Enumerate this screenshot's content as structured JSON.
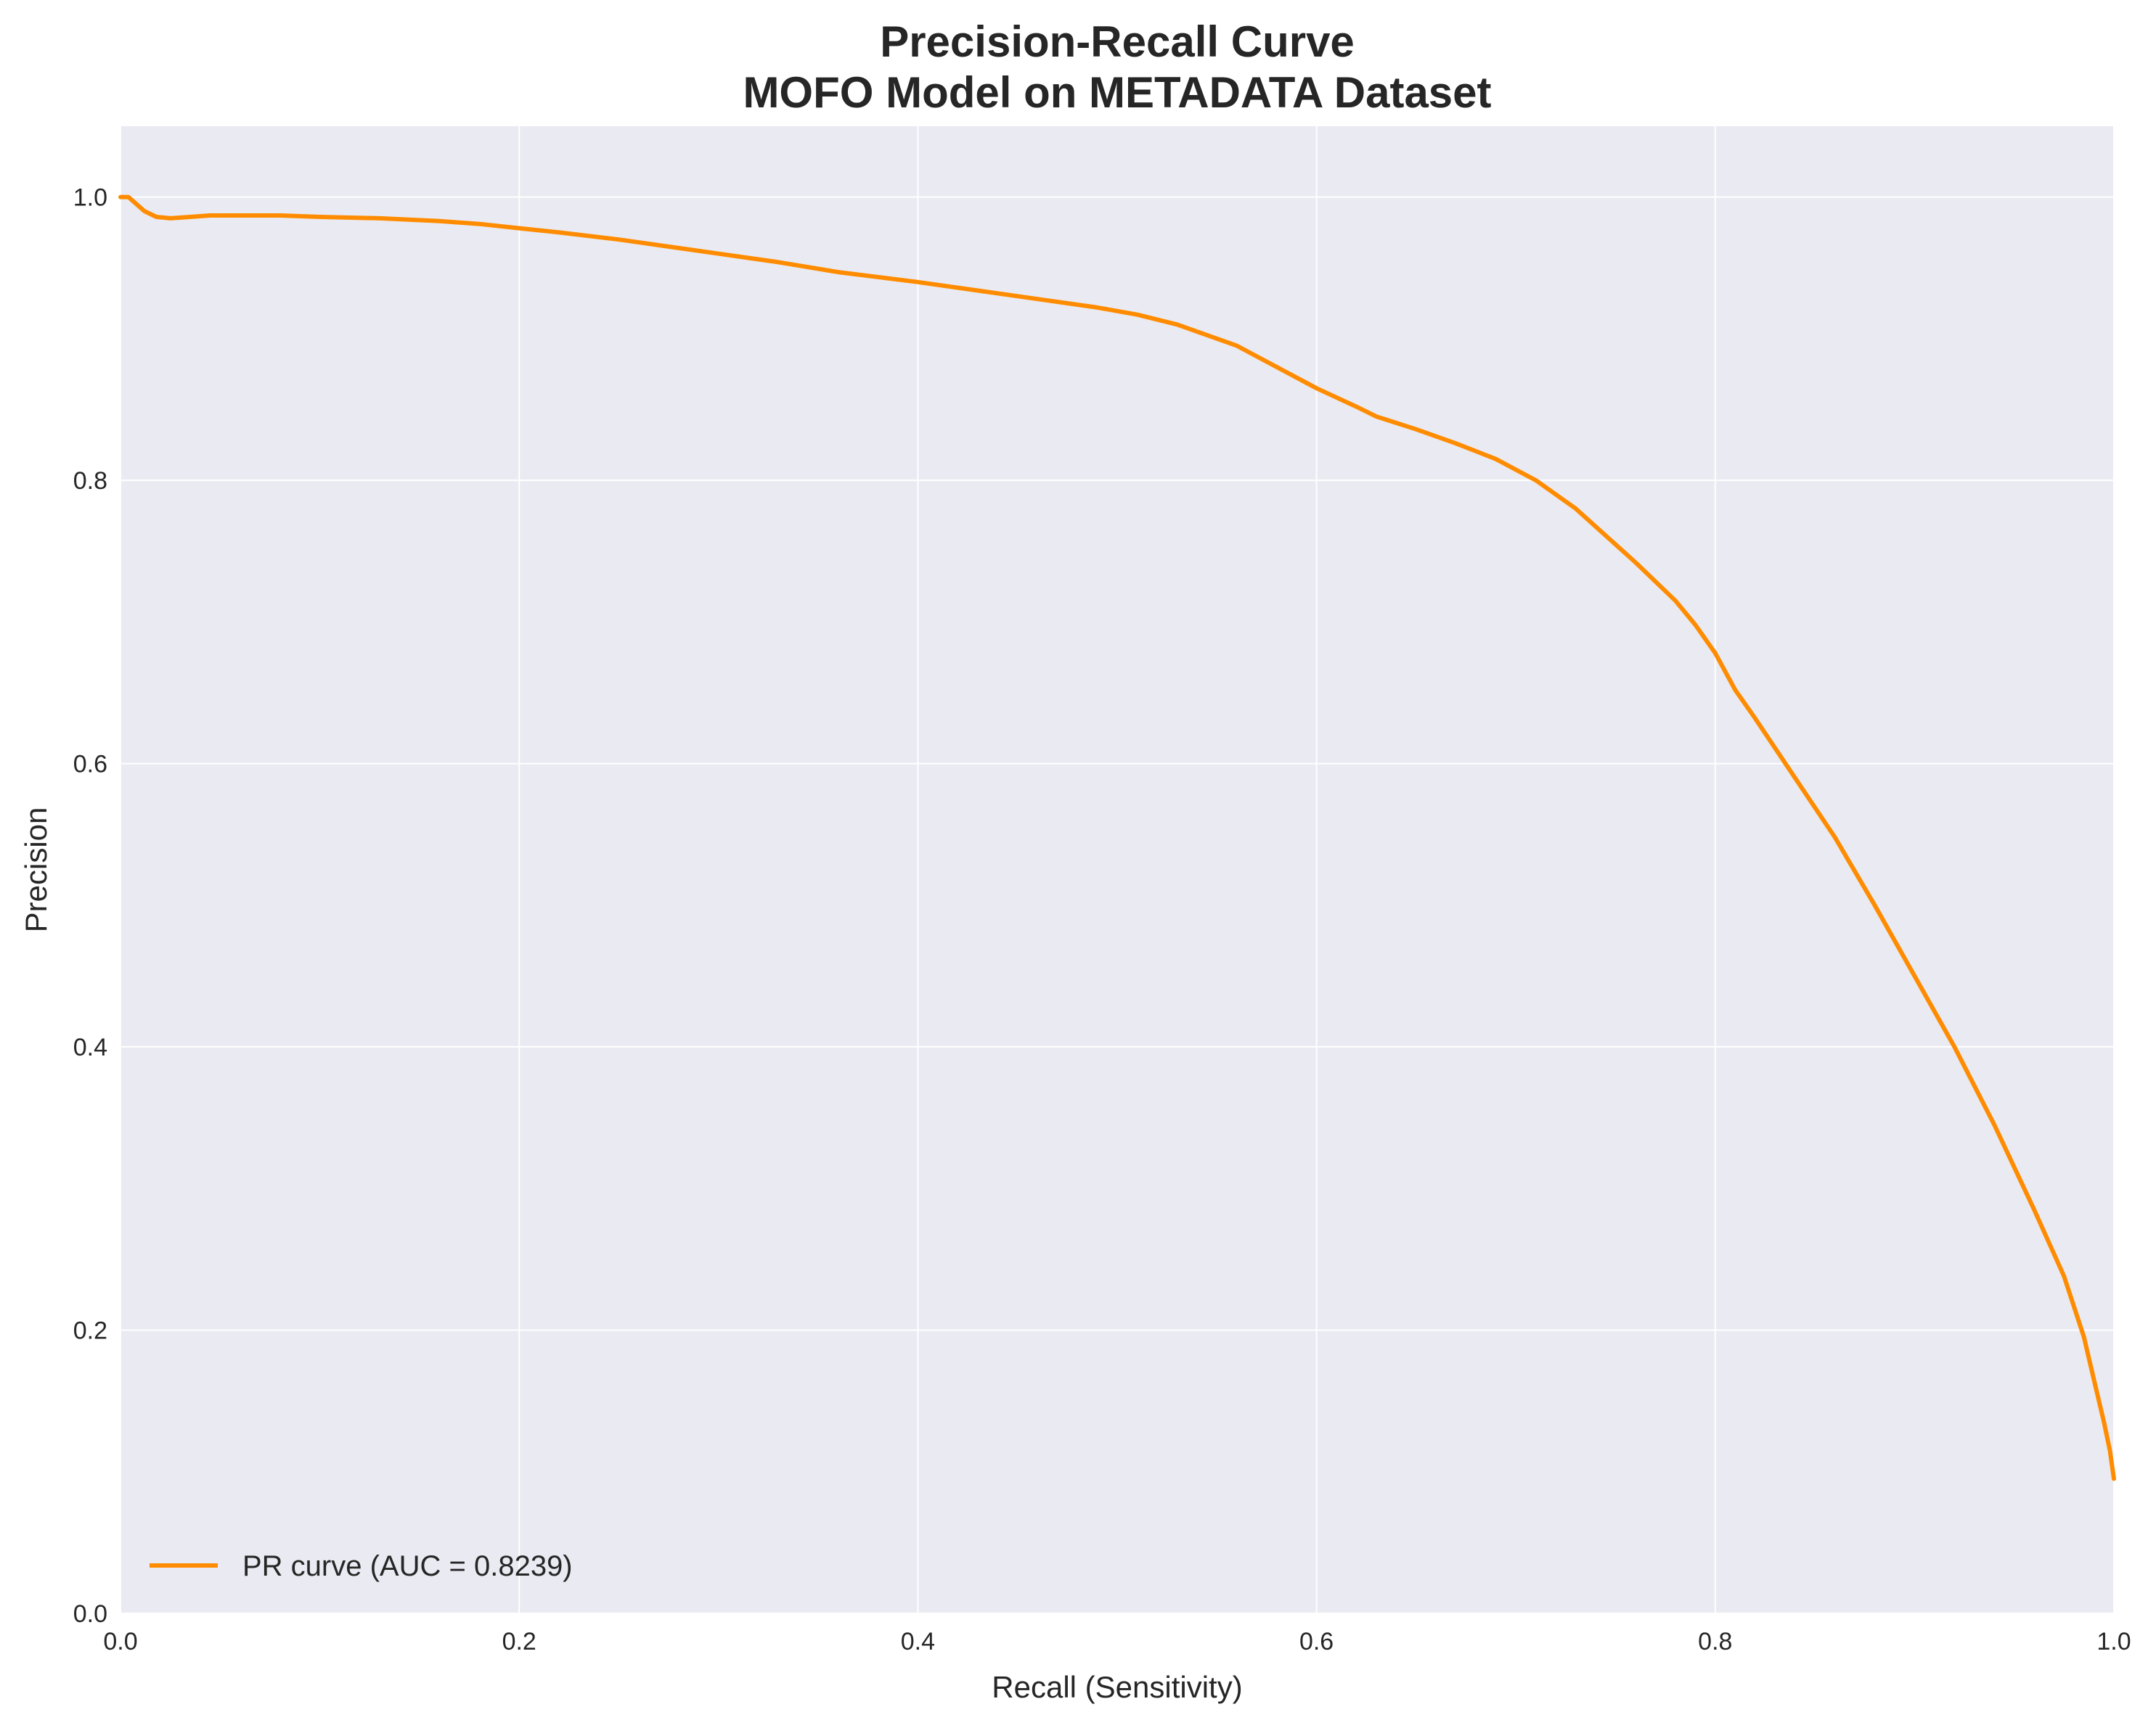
{
  "chart_data": {
    "type": "line",
    "title": "Precision-Recall Curve",
    "subtitle": "MOFO Model on METADATA Dataset",
    "xlabel": "Recall (Sensitivity)",
    "ylabel": "Precision",
    "xlim": [
      0.0,
      1.0
    ],
    "ylim": [
      0.0,
      1.05
    ],
    "xticks": [
      "0.0",
      "0.2",
      "0.4",
      "0.6",
      "0.8",
      "1.0"
    ],
    "yticks": [
      "0.0",
      "0.2",
      "0.4",
      "0.6",
      "0.8",
      "1.0"
    ],
    "grid": true,
    "legend_position": "lower-left",
    "colors": {
      "line": "#ff8c00",
      "plot_background": "#eaeaf2",
      "grid": "#ffffff"
    },
    "series": [
      {
        "name": "PR curve (AUC = 0.8239)",
        "x": [
          0.0,
          0.004,
          0.008,
          0.012,
          0.018,
          0.025,
          0.035,
          0.045,
          0.06,
          0.08,
          0.1,
          0.13,
          0.16,
          0.18,
          0.2,
          0.22,
          0.25,
          0.28,
          0.3,
          0.33,
          0.36,
          0.4,
          0.43,
          0.46,
          0.49,
          0.51,
          0.53,
          0.56,
          0.6,
          0.62,
          0.63,
          0.65,
          0.67,
          0.69,
          0.71,
          0.73,
          0.76,
          0.78,
          0.79,
          0.8,
          0.81,
          0.82,
          0.84,
          0.86,
          0.88,
          0.9,
          0.92,
          0.94,
          0.96,
          0.975,
          0.985,
          0.99,
          0.995,
          0.998,
          1.0
        ],
        "y": [
          1.0,
          1.0,
          0.995,
          0.99,
          0.986,
          0.985,
          0.986,
          0.987,
          0.987,
          0.987,
          0.986,
          0.985,
          0.983,
          0.981,
          0.978,
          0.975,
          0.97,
          0.964,
          0.96,
          0.954,
          0.947,
          0.94,
          0.934,
          0.928,
          0.922,
          0.917,
          0.91,
          0.895,
          0.865,
          0.852,
          0.845,
          0.836,
          0.826,
          0.815,
          0.8,
          0.78,
          0.742,
          0.715,
          0.698,
          0.678,
          0.652,
          0.632,
          0.59,
          0.548,
          0.5,
          0.45,
          0.4,
          0.345,
          0.285,
          0.238,
          0.195,
          0.165,
          0.135,
          0.115,
          0.095
        ]
      }
    ]
  }
}
